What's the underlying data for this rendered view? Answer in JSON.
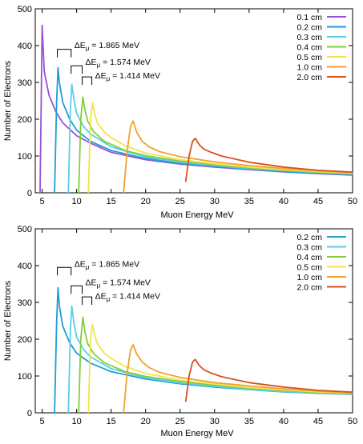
{
  "colors": {
    "0.1 cm": "#9b4fd6",
    "0.2 cm": "#1f9ed6",
    "0.3 cm": "#56d0ea",
    "0.4 cm": "#82cf3a",
    "0.5 cm": "#f2e34c",
    "1.0 cm": "#f2a12e",
    "2.0 cm": "#d9501e"
  },
  "chart_data": [
    {
      "type": "line",
      "xlabel": "Muon Energy MeV",
      "ylabel": "Number of Electrons",
      "xlim": [
        4,
        50
      ],
      "ylim": [
        0,
        500
      ],
      "xticks": [
        5,
        10,
        15,
        20,
        25,
        30,
        35,
        40,
        45,
        50
      ],
      "yticks": [
        0,
        100,
        200,
        300,
        400,
        500
      ],
      "legend_position": "top-right",
      "annotations": [
        {
          "label_main": "ΔE",
          "label_sub": "μ",
          "label_rest": " = 1.865 MeV",
          "x1": 7.2,
          "x2": 9.2,
          "y_bracket": 390,
          "y_text": 402
        },
        {
          "label_main": "ΔE",
          "label_sub": "μ",
          "label_rest": " = 1.574 MeV",
          "x1": 9.2,
          "x2": 10.8,
          "y_bracket": 345,
          "y_text": 357
        },
        {
          "label_main": "ΔE",
          "label_sub": "μ",
          "label_rest": " = 1.414 MeV",
          "x1": 10.8,
          "x2": 12.2,
          "y_bracket": 315,
          "y_text": 320
        }
      ],
      "series": [
        {
          "name": "0.1 cm",
          "x": [
            4.7,
            4.9,
            5.0,
            5.3,
            6,
            7,
            8,
            10,
            12,
            15,
            20,
            25,
            30,
            35,
            40,
            45,
            50
          ],
          "y": [
            0,
            300,
            455,
            330,
            265,
            220,
            190,
            155,
            135,
            110,
            90,
            78,
            70,
            63,
            57,
            52,
            48
          ]
        },
        {
          "name": "0.2 cm",
          "x": [
            6.8,
            7.1,
            7.3,
            7.5,
            8,
            9,
            10,
            12,
            15,
            20,
            25,
            30,
            35,
            40,
            45,
            50
          ],
          "y": [
            0,
            250,
            340,
            300,
            245,
            200,
            170,
            140,
            115,
            93,
            80,
            72,
            65,
            58,
            53,
            50
          ]
        },
        {
          "name": "0.3 cm",
          "x": [
            8.8,
            9.1,
            9.3,
            9.6,
            10,
            11,
            12,
            15,
            20,
            25,
            30,
            35,
            40,
            45,
            50
          ],
          "y": [
            0,
            230,
            295,
            255,
            215,
            180,
            160,
            125,
            97,
            83,
            74,
            66,
            60,
            55,
            51
          ]
        },
        {
          "name": "0.4 cm",
          "x": [
            10.3,
            10.6,
            10.9,
            11.2,
            11.6,
            12.5,
            14,
            17,
            20,
            25,
            30,
            35,
            40,
            45,
            50
          ],
          "y": [
            0,
            200,
            260,
            225,
            195,
            165,
            140,
            115,
            101,
            86,
            76,
            68,
            61,
            56,
            52
          ]
        },
        {
          "name": "0.5 cm",
          "x": [
            11.7,
            12.0,
            12.3,
            12.6,
            13,
            14,
            15,
            17,
            20,
            25,
            30,
            35,
            40,
            45,
            50
          ],
          "y": [
            0,
            200,
            245,
            215,
            190,
            165,
            150,
            128,
            108,
            90,
            79,
            70,
            63,
            58,
            53
          ]
        },
        {
          "name": "1.0 cm",
          "x": [
            16.8,
            17.3,
            17.8,
            18.2,
            18.7,
            19.5,
            20.5,
            22,
            25,
            30,
            35,
            40,
            45,
            50
          ],
          "y": [
            0,
            110,
            180,
            195,
            165,
            140,
            125,
            112,
            98,
            84,
            74,
            66,
            60,
            55
          ]
        },
        {
          "name": "2.0 cm",
          "x": [
            25.8,
            26.3,
            26.8,
            27.2,
            27.8,
            28.5,
            29.5,
            31,
            35,
            40,
            45,
            50
          ],
          "y": [
            30,
            100,
            140,
            148,
            130,
            118,
            110,
            100,
            83,
            70,
            61,
            56
          ]
        }
      ]
    },
    {
      "type": "line",
      "xlabel": "Muon Energy MeV",
      "ylabel": "Number of Electrons",
      "xlim": [
        4,
        50
      ],
      "ylim": [
        0,
        500
      ],
      "xticks": [
        5,
        10,
        15,
        20,
        25,
        30,
        35,
        40,
        45,
        50
      ],
      "yticks": [
        0,
        100,
        200,
        300,
        400,
        500
      ],
      "legend_position": "top-right",
      "annotations": [
        {
          "label_main": "ΔE",
          "label_sub": "μ",
          "label_rest": " = 1.865 MeV",
          "x1": 7.2,
          "x2": 9.2,
          "y_bracket": 395,
          "y_text": 405
        },
        {
          "label_main": "ΔE",
          "label_sub": "μ",
          "label_rest": " = 1.574 MeV",
          "x1": 9.2,
          "x2": 10.8,
          "y_bracket": 345,
          "y_text": 355
        },
        {
          "label_main": "ΔE",
          "label_sub": "μ",
          "label_rest": " = 1.414 MeV",
          "x1": 10.8,
          "x2": 12.2,
          "y_bracket": 315,
          "y_text": 318
        }
      ],
      "series": [
        {
          "name": "0.2 cm",
          "x": [
            6.8,
            7.1,
            7.3,
            7.5,
            8,
            9,
            10,
            12,
            15,
            20,
            25,
            30,
            35,
            40,
            45,
            50
          ],
          "y": [
            0,
            250,
            340,
            290,
            235,
            190,
            162,
            135,
            112,
            92,
            79,
            70,
            63,
            57,
            53,
            50
          ]
        },
        {
          "name": "0.3 cm",
          "x": [
            8.8,
            9.1,
            9.3,
            9.6,
            10,
            11,
            12,
            15,
            20,
            25,
            30,
            35,
            40,
            45,
            50
          ],
          "y": [
            0,
            230,
            290,
            245,
            205,
            172,
            152,
            120,
            95,
            81,
            72,
            64,
            58,
            54,
            50
          ]
        },
        {
          "name": "0.4 cm",
          "x": [
            10.3,
            10.6,
            10.9,
            11.2,
            11.6,
            12.5,
            14,
            17,
            20,
            25,
            30,
            35,
            40,
            45,
            50
          ],
          "y": [
            0,
            200,
            260,
            220,
            188,
            160,
            136,
            112,
            99,
            85,
            75,
            67,
            60,
            55,
            51
          ]
        },
        {
          "name": "0.5 cm",
          "x": [
            11.7,
            12.0,
            12.3,
            12.6,
            13,
            14,
            15,
            17,
            20,
            25,
            30,
            35,
            40,
            45,
            50
          ],
          "y": [
            0,
            200,
            240,
            212,
            188,
            162,
            148,
            126,
            107,
            89,
            78,
            69,
            62,
            57,
            53
          ]
        },
        {
          "name": "1.0 cm",
          "x": [
            16.8,
            17.3,
            17.8,
            18.2,
            18.7,
            19.5,
            20.5,
            22,
            25,
            30,
            35,
            40,
            45,
            50
          ],
          "y": [
            0,
            105,
            170,
            185,
            160,
            138,
            123,
            110,
            96,
            82,
            73,
            65,
            59,
            54
          ]
        },
        {
          "name": "2.0 cm",
          "x": [
            25.8,
            26.3,
            26.8,
            27.2,
            27.8,
            28.5,
            29.5,
            31,
            35,
            40,
            45,
            50
          ],
          "y": [
            30,
            100,
            138,
            145,
            128,
            116,
            108,
            98,
            82,
            70,
            61,
            56
          ]
        }
      ]
    }
  ]
}
